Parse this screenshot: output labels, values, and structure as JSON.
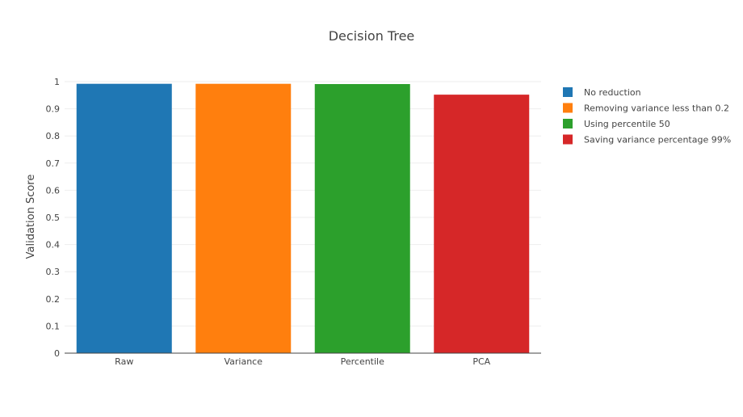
{
  "chart_data": {
    "type": "bar",
    "title": "Decision Tree",
    "xlabel": "",
    "ylabel": "Validation Score",
    "categories": [
      "Raw",
      "Variance",
      "Percentile",
      "PCA"
    ],
    "values": [
      0.992,
      0.992,
      0.991,
      0.952
    ],
    "colors": [
      "#1f77b4",
      "#ff7f0e",
      "#2ca02c",
      "#d62728"
    ],
    "legend": [
      "No reduction",
      "Removing variance less than 0.2",
      "Using percentile 50",
      "Saving variance percentage 99%"
    ],
    "legend_position": "top-right",
    "ylim": [
      0,
      1
    ],
    "yticks": [
      "0",
      "0.1",
      "0.2",
      "0.3",
      "0.4",
      "0.5",
      "0.6",
      "0.7",
      "0.8",
      "0.9",
      "1"
    ],
    "grid": true
  }
}
